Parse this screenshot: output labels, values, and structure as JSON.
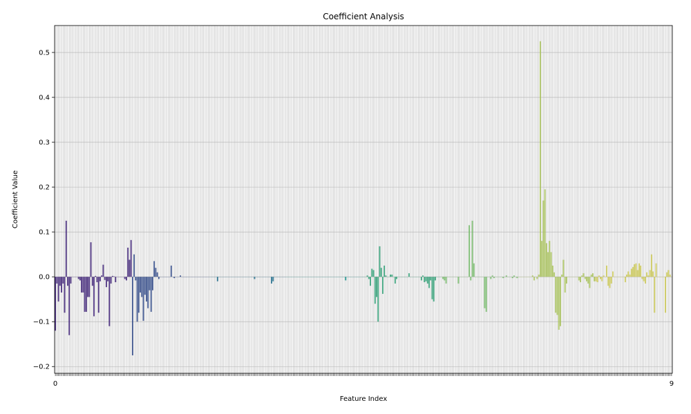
{
  "chart_data": {
    "type": "bar",
    "title": "Coefficient Analysis",
    "xlabel": "Feature Index",
    "ylabel": "Coefficient Value",
    "ylim": [
      -0.215,
      0.56
    ],
    "yticks": [
      -0.2,
      -0.1,
      0.0,
      0.1,
      0.2,
      0.3,
      0.4,
      0.5
    ],
    "ytick_labels": [
      "−0.2",
      "−0.1",
      "0.0",
      "0.1",
      "0.2",
      "0.3",
      "0.4",
      "0.5"
    ],
    "x_first_label": "0",
    "x_last_label": "9",
    "n_features": 400,
    "grid": true,
    "palette": [
      "#472d7b",
      "#3b528b",
      "#2c728e",
      "#21918c",
      "#3aa07a",
      "#7ab86f",
      "#a8c060",
      "#c8c55a"
    ],
    "values": [
      -0.12,
      -0.015,
      -0.055,
      -0.02,
      -0.035,
      -0.015,
      -0.08,
      0.125,
      -0.02,
      -0.13,
      -0.015,
      0.0,
      0.0,
      0.0,
      0.0,
      -0.005,
      -0.008,
      -0.035,
      -0.035,
      -0.078,
      -0.078,
      -0.045,
      -0.045,
      0.077,
      -0.02,
      -0.088,
      0.002,
      -0.012,
      -0.08,
      -0.01,
      0.003,
      0.027,
      -0.007,
      -0.023,
      -0.01,
      -0.11,
      -0.015,
      0.002,
      0.001,
      -0.012,
      0.0,
      0.0,
      0.0,
      0.0,
      0.0,
      -0.005,
      -0.008,
      0.065,
      0.038,
      0.082,
      -0.175,
      0.05,
      -0.008,
      -0.1,
      -0.08,
      -0.035,
      -0.045,
      -0.098,
      -0.04,
      -0.055,
      -0.07,
      -0.03,
      -0.078,
      -0.03,
      0.035,
      0.02,
      0.01,
      -0.005,
      0.0,
      0.0,
      0.0,
      0.0,
      0.0,
      0.0,
      0.0,
      0.025,
      0.0,
      -0.003,
      0.0,
      0.0,
      0.0,
      0.003,
      0.0,
      0.0,
      0.0,
      0.0,
      0.0,
      0.0,
      0.0,
      0.0,
      0.0,
      0.0,
      0.0,
      0.0,
      0.0,
      0.0,
      0.0,
      0.0,
      0.0,
      0.0,
      0.0,
      0.0,
      0.0,
      0.0,
      0.0,
      -0.01,
      0.0,
      0.0,
      0.0,
      0.0,
      0.0,
      0.0,
      0.0,
      0.0,
      0.0,
      0.0,
      0.0,
      0.0,
      0.0,
      0.0,
      0.0,
      0.0,
      0.0,
      0.0,
      0.0,
      0.0,
      0.0,
      0.0,
      0.0,
      -0.005,
      0.0,
      0.0,
      0.0,
      0.0,
      0.0,
      0.0,
      0.0,
      0.0,
      0.0,
      0.0,
      -0.015,
      -0.01,
      0.0,
      0.0,
      0.0,
      0.0,
      0.0,
      0.0,
      0.0,
      0.0,
      0.0,
      0.0,
      0.0,
      0.0,
      0.0,
      0.0,
      0.0,
      0.0,
      0.0,
      0.0,
      0.0,
      0.0,
      0.0,
      0.0,
      0.0,
      0.0,
      0.0,
      0.0,
      0.0,
      0.0,
      0.0,
      0.0,
      0.0,
      0.0,
      0.0,
      0.0,
      0.0,
      0.0,
      0.0,
      0.0,
      0.0,
      0.0,
      0.0,
      0.0,
      0.0,
      0.0,
      0.0,
      0.0,
      -0.008,
      0.0,
      0.0,
      0.0,
      0.0,
      0.0,
      0.0,
      0.0,
      0.0,
      0.0,
      0.0,
      0.0,
      0.0,
      0.0,
      0.003,
      -0.005,
      -0.02,
      0.018,
      0.015,
      -0.06,
      -0.045,
      -0.1,
      0.068,
      0.02,
      -0.038,
      0.025,
      0.003,
      0.0,
      0.0,
      0.005,
      0.005,
      0.0,
      -0.015,
      -0.005,
      0.0,
      0.0,
      0.0,
      0.0,
      0.0,
      0.0,
      0.0,
      0.008,
      0.0,
      0.0,
      0.0,
      0.0,
      0.0,
      0.0,
      0.0,
      -0.008,
      0.003,
      -0.012,
      -0.01,
      -0.015,
      -0.025,
      -0.008,
      -0.05,
      -0.055,
      -0.008,
      0.0,
      0.0,
      0.0,
      0.0,
      -0.005,
      -0.008,
      -0.015,
      0.0,
      0.0,
      0.0,
      0.0,
      0.0,
      0.0,
      0.0,
      -0.015,
      0.0,
      0.0,
      0.0,
      0.0,
      0.0,
      0.0,
      0.115,
      -0.008,
      0.125,
      0.03,
      0.0,
      0.0,
      0.0,
      0.0,
      0.0,
      0.0,
      -0.07,
      -0.078,
      0.0,
      0.0,
      -0.005,
      0.003,
      -0.003,
      0.0,
      0.0,
      0.0,
      0.0,
      0.0,
      -0.003,
      0.0,
      0.003,
      0.0,
      0.0,
      0.0,
      -0.003,
      0.003,
      0.0,
      -0.003,
      0.0,
      0.0,
      0.0,
      0.0,
      0.0,
      0.0,
      0.0,
      0.0,
      0.0,
      0.003,
      -0.008,
      0.0,
      -0.005,
      0.005,
      0.525,
      0.08,
      0.17,
      0.195,
      0.075,
      0.055,
      0.08,
      0.055,
      0.025,
      0.01,
      -0.08,
      -0.085,
      -0.118,
      -0.11,
      0.005,
      0.038,
      -0.035,
      -0.015,
      0.0,
      0.0,
      0.0,
      0.0,
      0.0,
      0.0,
      0.0,
      -0.008,
      -0.012,
      0.003,
      0.008,
      -0.005,
      -0.01,
      -0.015,
      -0.025,
      0.005,
      0.008,
      -0.01,
      -0.01,
      -0.012,
      0.003,
      -0.005,
      -0.01,
      0.003,
      0.0,
      0.025,
      -0.02,
      -0.025,
      -0.015,
      0.012,
      0.0,
      0.0,
      0.0,
      0.0,
      0.0,
      0.0,
      0.0,
      -0.012,
      0.005,
      0.012,
      0.005,
      0.018,
      0.022,
      0.028,
      0.03,
      0.015,
      0.03,
      0.025,
      -0.005,
      -0.01,
      -0.015,
      0.01,
      0.003,
      0.015,
      0.05,
      0.012,
      -0.08,
      0.03,
      0.0,
      0.0,
      0.0,
      0.0,
      0.0,
      -0.08,
      0.01,
      0.015,
      0.005,
      0.0
    ]
  }
}
